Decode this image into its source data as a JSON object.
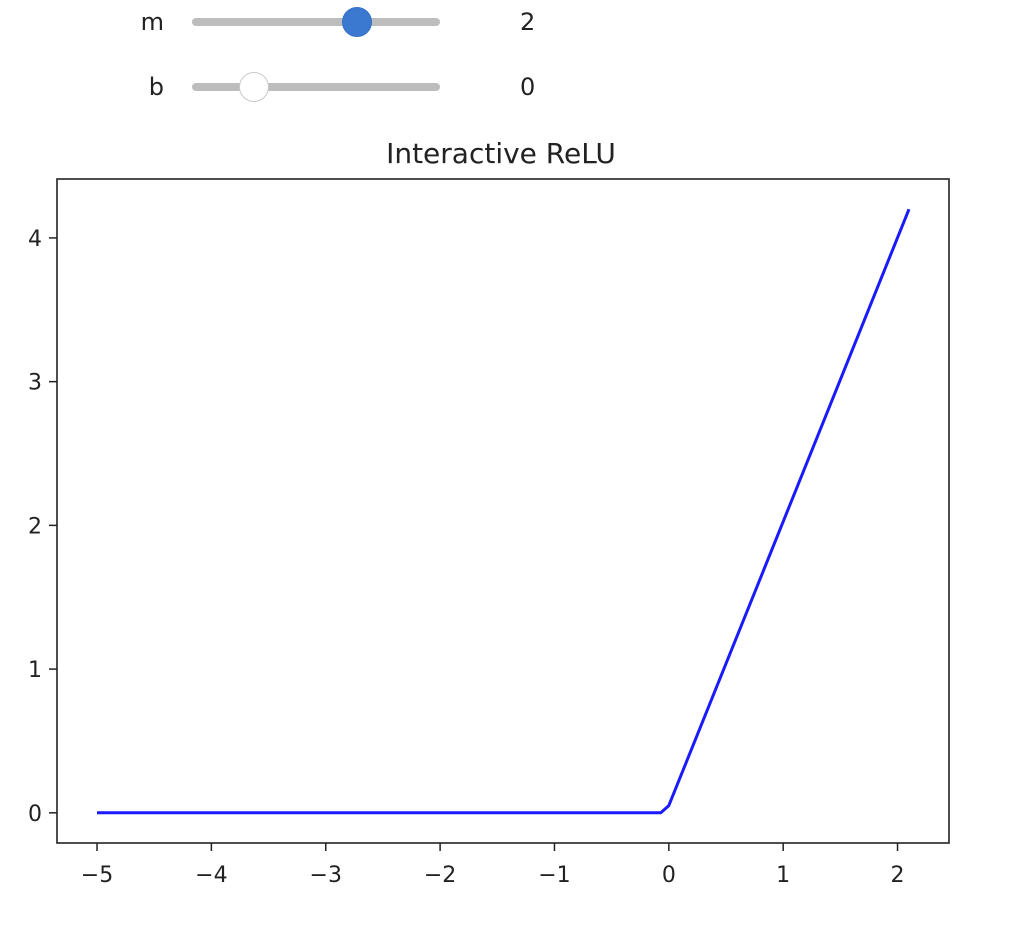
{
  "sliders": [
    {
      "label": "m",
      "value": "2",
      "min": 0,
      "max": 3,
      "current": 2,
      "state": "active",
      "color": "#3b78d0"
    },
    {
      "label": "b",
      "value": "0",
      "min": -1,
      "max": 3,
      "current": 0,
      "state": "inactive"
    }
  ],
  "chart_data": {
    "type": "line",
    "title": "Interactive ReLU",
    "xlabel": "",
    "ylabel": "",
    "xlim": [
      -5.35,
      2.45
    ],
    "ylim": [
      -0.21,
      4.41
    ],
    "xticks": [
      -5,
      -4,
      -3,
      -2,
      -1,
      0,
      1,
      2
    ],
    "xtick_labels": [
      "−5",
      "−4",
      "−3",
      "−2",
      "−1",
      "0",
      "1",
      "2"
    ],
    "yticks": [
      0,
      1,
      2,
      3,
      4
    ],
    "ytick_labels": [
      "0",
      "1",
      "2",
      "3",
      "4"
    ],
    "grid": false,
    "series": [
      {
        "color": "#1a1aff",
        "x": [
          -5,
          -0.07,
          0,
          2.1
        ],
        "y": [
          0,
          0,
          0.05,
          4.2
        ]
      }
    ]
  }
}
